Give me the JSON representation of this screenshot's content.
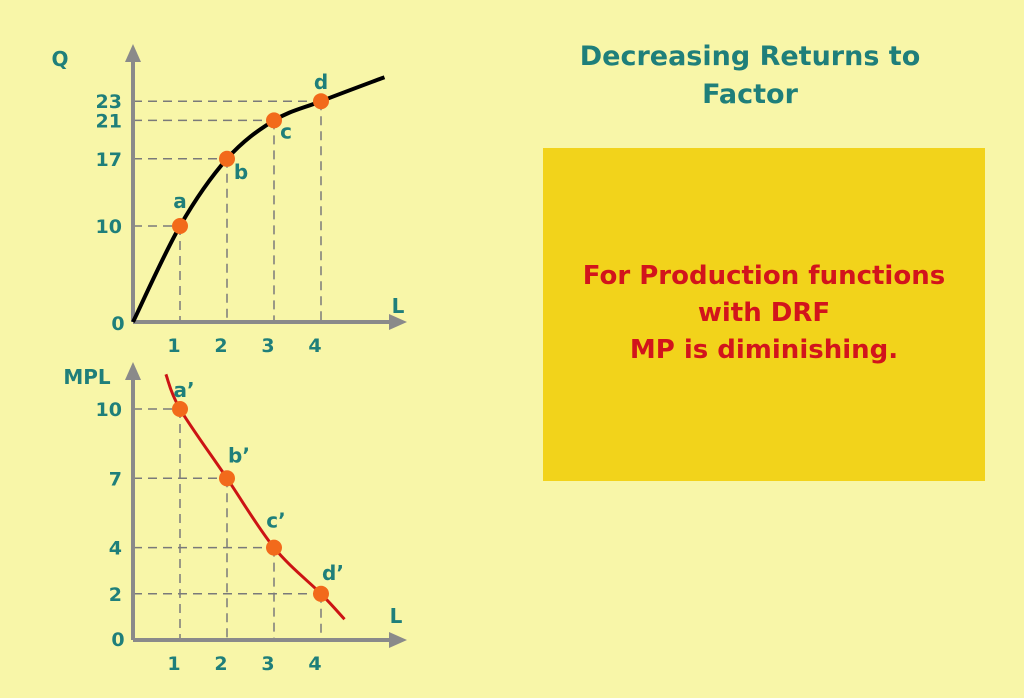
{
  "title": {
    "line1": "Decreasing Returns to",
    "line2": "Factor"
  },
  "callout": {
    "line1": "For Production functions",
    "line2": "with DRF",
    "line3": "MP is diminishing."
  },
  "colors": {
    "background": "#f8f6a8",
    "title": "#1f7f7a",
    "callout_bg": "#f2d31b",
    "callout_text": "#d2141c",
    "total_curve": "#000000",
    "marginal_curve": "#cc1414",
    "point": "#f26a1b",
    "axis": "#8a8a8a",
    "label": "#1f7f7a"
  },
  "chart_data": [
    {
      "type": "line",
      "ylabel": "Q",
      "xlabel": "L",
      "origin_label": "0",
      "x_ticks": [
        "1",
        "2",
        "3",
        "4"
      ],
      "y_ticks": [
        "10",
        "17",
        "21",
        "23"
      ],
      "series": [
        {
          "points": [
            {
              "label": "a",
              "x": 1,
              "y": 10
            },
            {
              "label": "b",
              "x": 2,
              "y": 17
            },
            {
              "label": "c",
              "x": 3,
              "y": 21
            },
            {
              "label": "d",
              "x": 4,
              "y": 23
            }
          ]
        }
      ],
      "xlim": [
        0,
        5.2
      ],
      "ylim": [
        0,
        28
      ]
    },
    {
      "type": "line",
      "ylabel": "MPL",
      "xlabel": "L",
      "origin_label": "0",
      "x_ticks": [
        "1",
        "2",
        "3",
        "4"
      ],
      "y_ticks": [
        "2",
        "4",
        "7",
        "10"
      ],
      "series": [
        {
          "points": [
            {
              "label": "a’",
              "x": 1,
              "y": 10
            },
            {
              "label": "b’",
              "x": 2,
              "y": 7
            },
            {
              "label": "c’",
              "x": 3,
              "y": 4
            },
            {
              "label": "d’",
              "x": 4,
              "y": 2
            }
          ]
        }
      ],
      "xlim": [
        0,
        5.2
      ],
      "ylim": [
        0,
        13
      ]
    }
  ]
}
